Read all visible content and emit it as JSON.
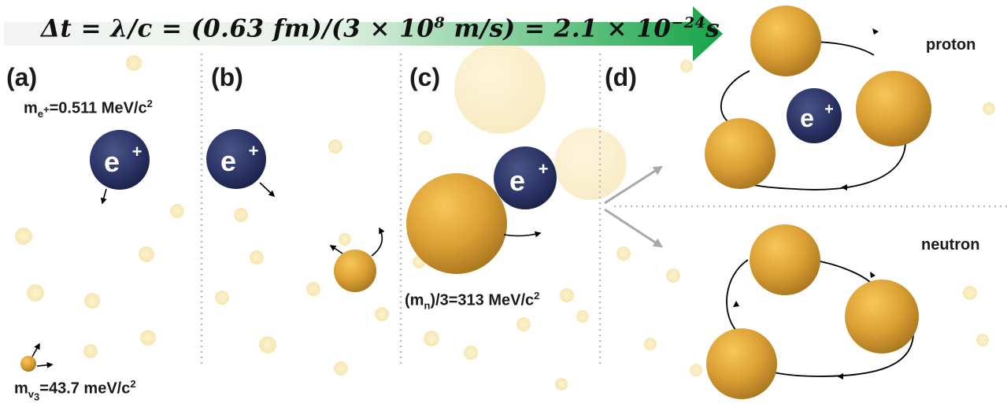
{
  "header": {
    "equation": "Δt = λ/c = (0.63 fm)/(3 × 10",
    "eq_exp1": "8",
    "eq_mid": " m/s) = 2.1 × 10",
    "eq_exp2": "−24",
    "eq_end": "s"
  },
  "panels": {
    "a": {
      "label": "(a)",
      "positron_mass_prefix": "m",
      "positron_mass_sub": "e",
      "positron_mass_sup": "+",
      "positron_mass_value": "=0.511 MeV/c",
      "positron_mass_unit_sup": "2",
      "neutrino_mass_prefix": "m",
      "neutrino_mass_sub": "v",
      "neutrino_mass_subsub": "3",
      "neutrino_mass_value": "=43.7 meV/c",
      "neutrino_mass_unit_sup": "2"
    },
    "b": {
      "label": "(b)"
    },
    "c": {
      "label": "(c)",
      "quark_mass_prefix": "(m",
      "quark_mass_sub": "n",
      "quark_mass_value": ")/3=313 MeV/c",
      "quark_mass_unit_sup": "2"
    },
    "d": {
      "label": "(d)",
      "proton": "proton",
      "neutron": "neutron"
    }
  },
  "particle_symbol": "e",
  "particle_charge": "+",
  "colors": {
    "positron": "#2c3566",
    "quark": "#d9a03a",
    "arrow_start": "#f2f2f2",
    "arrow_end": "#1aa84b",
    "divider": "#b5b5b5",
    "background_dot": "#fbeec2"
  }
}
